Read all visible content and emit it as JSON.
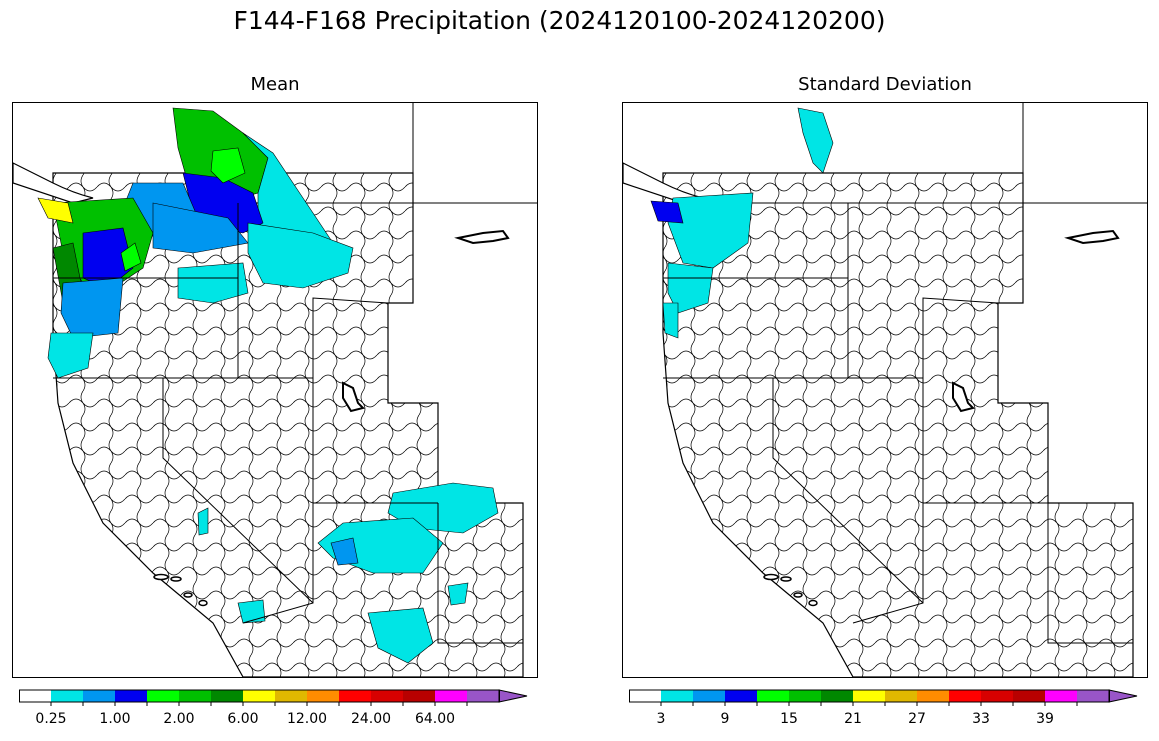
{
  "title": "F144-F168 Precipitation (2024120100-2024120200)",
  "panels": [
    {
      "id": "mean",
      "title": "Mean",
      "colorbar_ticks": [
        "0.25",
        "1.00",
        "2.00",
        "6.00",
        "12.00",
        "24.00",
        "64.00"
      ]
    },
    {
      "id": "std",
      "title": "Standard Deviation",
      "colorbar_ticks": [
        "3",
        "9",
        "15",
        "21",
        "27",
        "33",
        "39"
      ]
    }
  ],
  "colorbar_colors": [
    "#ffffff",
    "#00e5e5",
    "#0096f0",
    "#0000f0",
    "#00ff00",
    "#00c000",
    "#008800",
    "#ffff00",
    "#e0b800",
    "#ff8c00",
    "#ff0000",
    "#d80000",
    "#b80000",
    "#ff00ff",
    "#9955c8"
  ],
  "map_colors": {
    "basin_outline": "#000000",
    "water": "#ffffff"
  }
}
